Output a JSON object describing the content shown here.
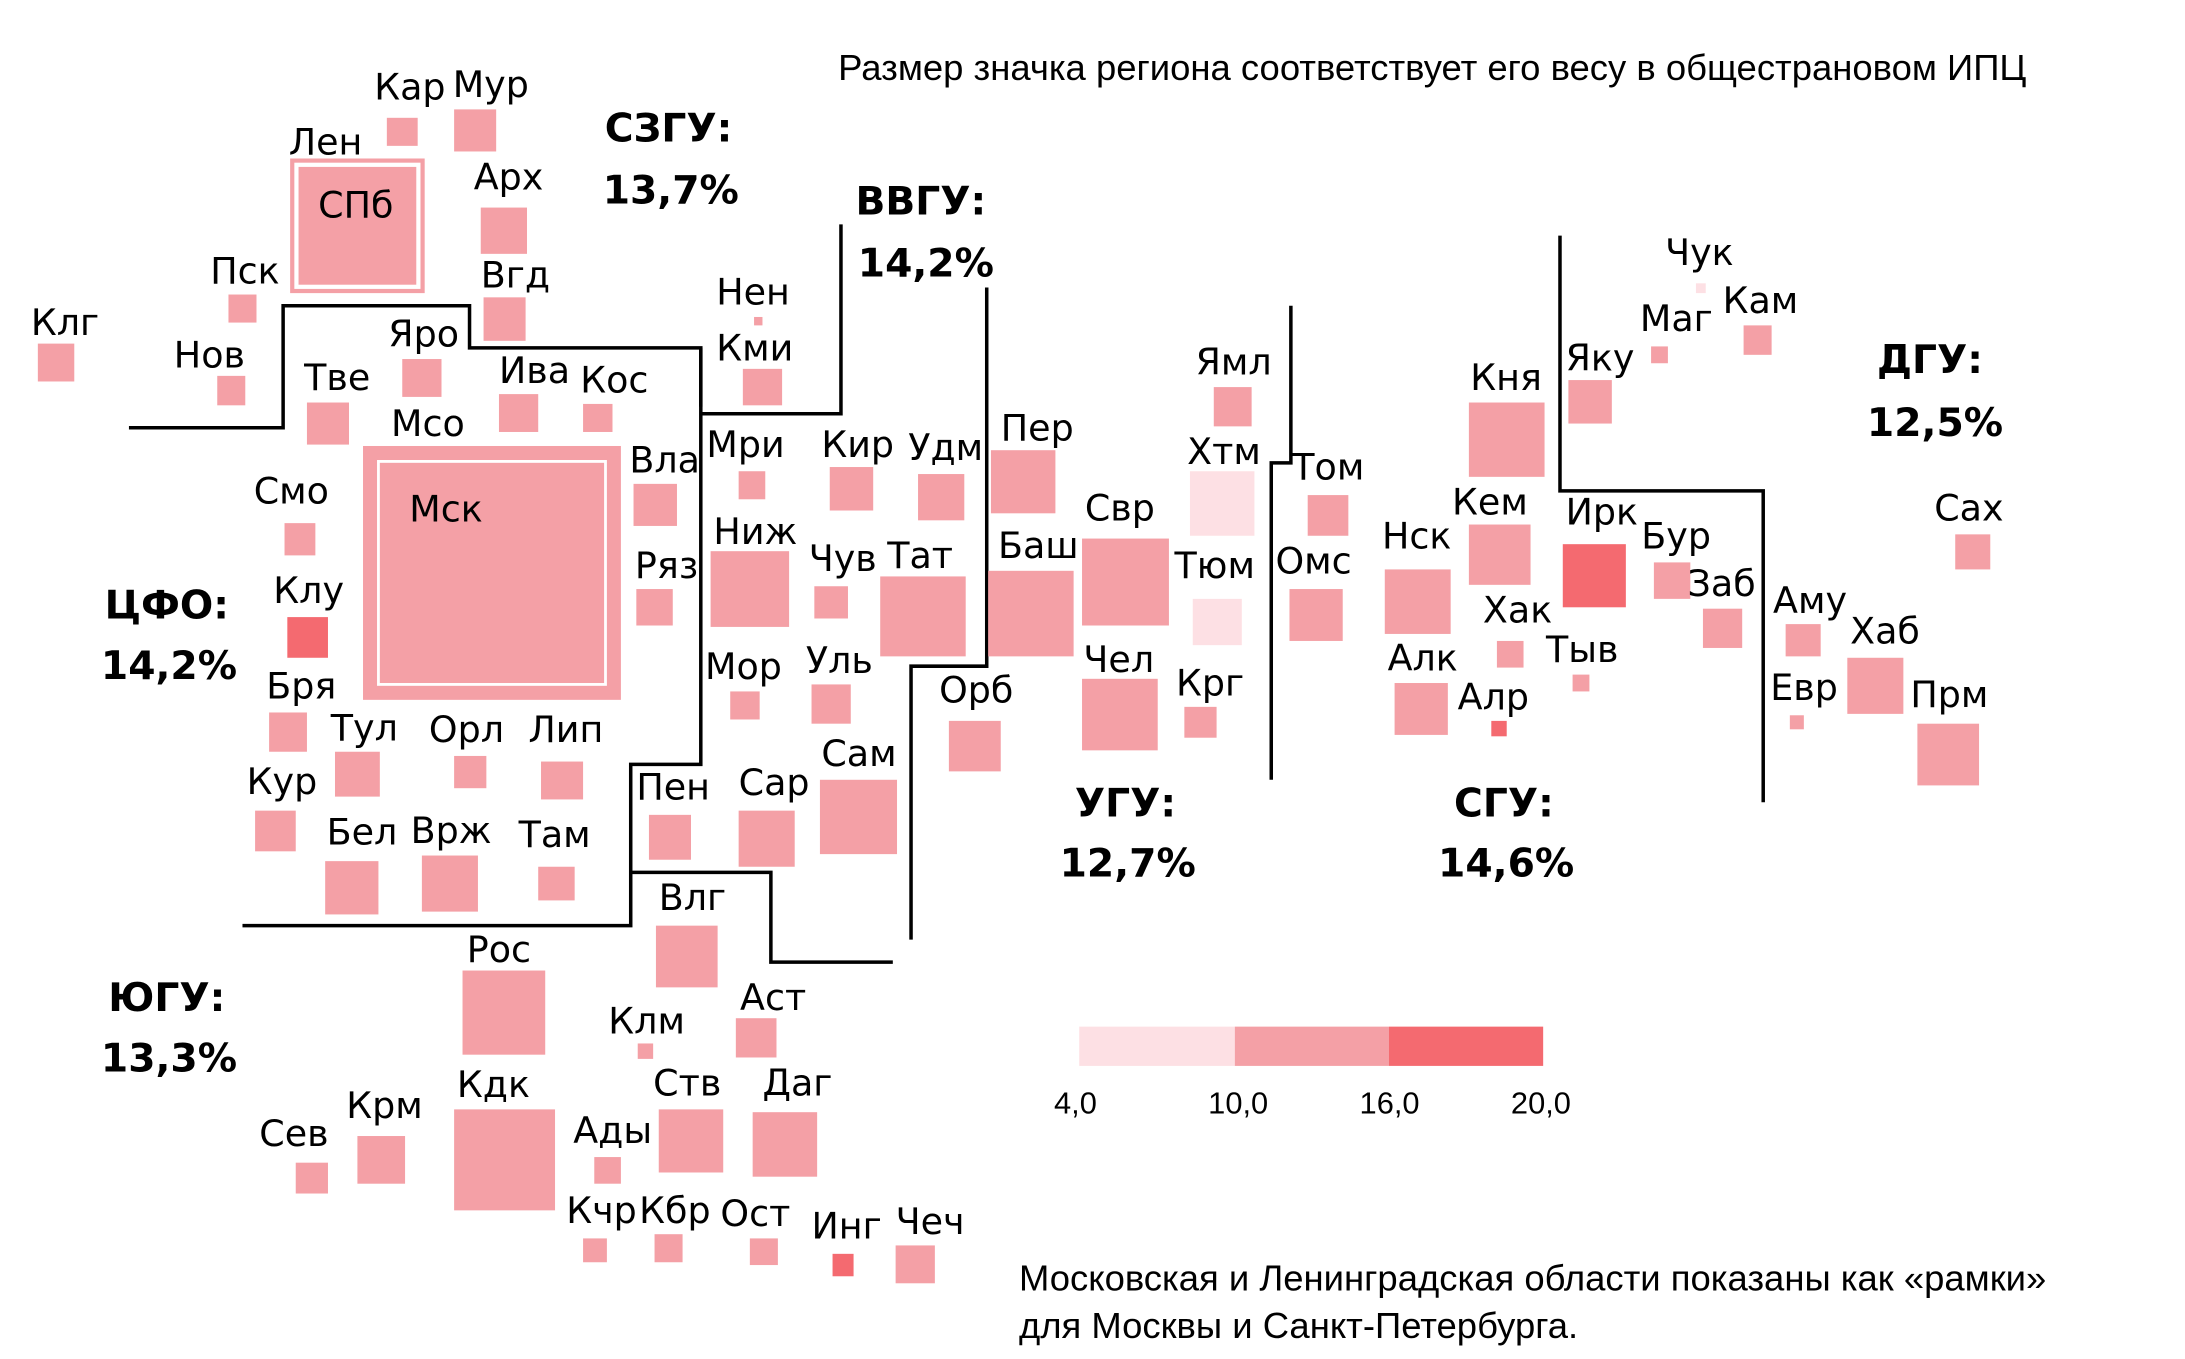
{
  "header_note": "Размер значка региона соответствует его весу в общестрановом ИПЦ",
  "footer_note": {
    "line1": "Московская и Ленинградская области показаны как «рамки»",
    "line2": "для Москвы и Санкт-Петербурга."
  },
  "districts": {
    "szfo": {
      "name": "СЗГУ:",
      "share": "13,7%"
    },
    "vvgu": {
      "name": "ВВГУ:",
      "share": "14,2%"
    },
    "dgu": {
      "name": "ДГУ:",
      "share": "12,5%"
    },
    "cfo": {
      "name": "ЦФО:",
      "share": "14,2%"
    },
    "ugu": {
      "name": "УГУ:",
      "share": "12,7%"
    },
    "sgu": {
      "name": "СГУ:",
      "share": "14,6%"
    },
    "yugu": {
      "name": "ЮГУ:",
      "share": "13,3%"
    }
  },
  "legend": {
    "ticks": [
      "4,0",
      "10,0",
      "16,0",
      "20,0"
    ],
    "colors": [
      "#fde0e4",
      "#f4a0a6",
      "#f46a70"
    ]
  },
  "colors": {
    "light": "#fde0e4",
    "mid": "#f4a0a6",
    "dark": "#f46a70"
  },
  "regions": {
    "kar": "Кар",
    "mur": "Мур",
    "len": "Лен",
    "spb": "СПб",
    "arh": "Арх",
    "psk": "Пск",
    "vgd": "Вгд",
    "klg": "Клг",
    "nov": "Нов",
    "yaro": "Яро",
    "ivan": "Ива",
    "kos": "Кос",
    "tve": "Тве",
    "mso": "Мсо",
    "msk": "Мск",
    "vla": "Вла",
    "smo": "Смо",
    "ryaz": "Ряз",
    "klu": "Клу",
    "brya": "Бря",
    "tul": "Тул",
    "orl": "Орл",
    "lip": "Лип",
    "kur": "Кур",
    "bel": "Бел",
    "vrzh": "Врж",
    "tam": "Там",
    "nen": "Нен",
    "kmi": "Кми",
    "mri": "Мри",
    "kir": "Кир",
    "udm": "Удм",
    "per": "Пер",
    "nizh": "Ниж",
    "chuv": "Чув",
    "tat": "Тат",
    "bash": "Баш",
    "mor": "Мор",
    "ulya": "Уль",
    "orb": "Орб",
    "pen": "Пен",
    "sar": "Сар",
    "sam": "Сам",
    "svr": "Свр",
    "chel": "Чел",
    "yaml": "Ямл",
    "htm": "Хтм",
    "tyum": "Тюм",
    "krg": "Крг",
    "tom": "Том",
    "oms": "Омс",
    "knya": "Кня",
    "kem": "Кем",
    "nsk": "Нск",
    "alk": "Алк",
    "hak": "Хак",
    "alr": "Алр",
    "irk": "Ирк",
    "tyv": "Тыв",
    "yaku": "Яку",
    "bur": "Бур",
    "zab": "Заб",
    "chuk": "Чук",
    "mag": "Маг",
    "kam": "Кам",
    "amu": "Аму",
    "sah": "Сах",
    "hab": "Хаб",
    "evr": "Евр",
    "prm": "Прм",
    "vlg": "Влг",
    "ros": "Рос",
    "klm": "Клм",
    "ast": "Аст",
    "kdk": "Кдк",
    "stv": "Ств",
    "dag": "Даг",
    "ady": "Ады",
    "sev": "Сев",
    "krm": "Крм",
    "kchr": "Кчр",
    "kbr": "Кбр",
    "ost": "Ост",
    "ing": "Инг",
    "chech": "Чеч"
  }
}
